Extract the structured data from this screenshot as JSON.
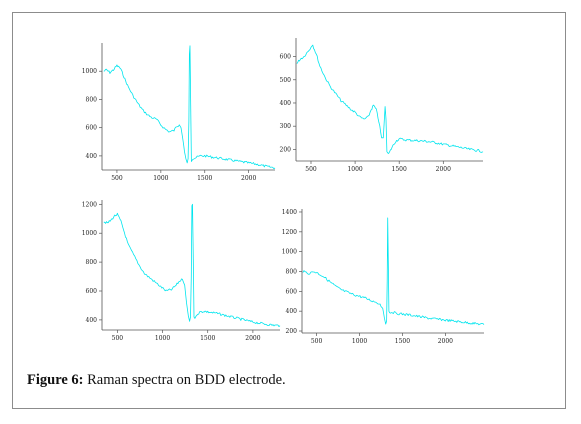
{
  "figure": {
    "caption_label": "Figure 6:",
    "caption_text": " Raman spectra on BDD electrode."
  },
  "colors": {
    "series": "#00e5ee",
    "axis": "#555555",
    "border": "#8c8c8c"
  },
  "chart_data": [
    {
      "type": "line",
      "xlim": [
        330,
        2300
      ],
      "ylim": [
        300,
        1200
      ],
      "xticks": [
        500,
        1000,
        1500,
        2000
      ],
      "yticks": [
        400,
        600,
        800,
        1000
      ],
      "series": [
        {
          "x": [
            350,
            380,
            420,
            460,
            500,
            540,
            580,
            620,
            680,
            740,
            800,
            850,
            900,
            950,
            1000,
            1050,
            1100,
            1150,
            1180,
            1210,
            1230,
            1250,
            1270,
            1285,
            1300,
            1310,
            1320,
            1325,
            1332,
            1340,
            1348,
            1360,
            1390,
            1450,
            1500,
            1600,
            1700,
            1800,
            1900,
            2000,
            2100,
            2200,
            2300
          ],
          "y": [
            1000,
            1010,
            990,
            1010,
            1040,
            1020,
            960,
            900,
            830,
            770,
            720,
            690,
            670,
            660,
            620,
            590,
            570,
            580,
            610,
            620,
            600,
            520,
            430,
            380,
            350,
            380,
            650,
            1120,
            1180,
            760,
            360,
            380,
            385,
            400,
            400,
            390,
            380,
            370,
            360,
            350,
            340,
            325,
            315
          ]
        }
      ]
    },
    {
      "type": "line",
      "xlim": [
        330,
        2450
      ],
      "ylim": [
        150,
        680
      ],
      "xticks": [
        500,
        1000,
        1500,
        2000
      ],
      "yticks": [
        200,
        300,
        400,
        500,
        600
      ],
      "series": [
        {
          "x": [
            340,
            380,
            420,
            460,
            500,
            520,
            560,
            600,
            660,
            720,
            780,
            840,
            900,
            960,
            1000,
            1050,
            1100,
            1150,
            1180,
            1210,
            1240,
            1270,
            1300,
            1320,
            1340,
            1350,
            1360,
            1380,
            1420,
            1460,
            1500,
            1550,
            1600,
            1700,
            1800,
            1900,
            2000,
            2100,
            2200,
            2300,
            2400,
            2450
          ],
          "y": [
            570,
            590,
            600,
            620,
            640,
            650,
            610,
            560,
            510,
            470,
            440,
            410,
            390,
            370,
            360,
            340,
            330,
            340,
            370,
            390,
            370,
            320,
            250,
            250,
            385,
            330,
            190,
            180,
            210,
            235,
            245,
            242,
            240,
            238,
            235,
            230,
            222,
            215,
            208,
            200,
            195,
            190
          ]
        }
      ]
    },
    {
      "type": "line",
      "xlim": [
        330,
        2300
      ],
      "ylim": [
        330,
        1230
      ],
      "xticks": [
        500,
        1000,
        1500,
        2000
      ],
      "yticks": [
        400,
        600,
        800,
        1000,
        1200
      ],
      "series": [
        {
          "x": [
            350,
            390,
            430,
            470,
            500,
            540,
            580,
            620,
            680,
            740,
            800,
            860,
            920,
            980,
            1040,
            1100,
            1150,
            1190,
            1220,
            1245,
            1265,
            1285,
            1300,
            1310,
            1318,
            1325,
            1332,
            1340,
            1348,
            1358,
            1380,
            1420,
            1460,
            1500,
            1600,
            1700,
            1800,
            1900,
            2000,
            2100,
            2200,
            2300
          ],
          "y": [
            1080,
            1070,
            1090,
            1120,
            1130,
            1080,
            1000,
            920,
            850,
            780,
            720,
            690,
            660,
            630,
            600,
            610,
            640,
            670,
            680,
            640,
            520,
            430,
            390,
            420,
            700,
            1190,
            1200,
            820,
            420,
            410,
            440,
            455,
            460,
            455,
            445,
            430,
            415,
            400,
            385,
            375,
            365,
            360
          ]
        }
      ]
    },
    {
      "type": "line",
      "xlim": [
        330,
        2450
      ],
      "ylim": [
        180,
        1430
      ],
      "xticks": [
        500,
        1000,
        1500,
        2000
      ],
      "yticks": [
        200,
        400,
        600,
        800,
        1000,
        1200,
        1400
      ],
      "series": [
        {
          "x": [
            340,
            380,
            420,
            460,
            500,
            540,
            580,
            620,
            680,
            740,
            800,
            860,
            920,
            980,
            1040,
            1100,
            1160,
            1200,
            1240,
            1270,
            1290,
            1305,
            1315,
            1322,
            1328,
            1335,
            1342,
            1350,
            1360,
            1380,
            1420,
            1460,
            1500,
            1600,
            1700,
            1800,
            1900,
            2000,
            2100,
            2200,
            2300,
            2400,
            2450
          ],
          "y": [
            800,
            790,
            780,
            800,
            790,
            770,
            750,
            720,
            680,
            640,
            610,
            590,
            570,
            555,
            540,
            520,
            500,
            490,
            470,
            430,
            330,
            270,
            300,
            700,
            1340,
            900,
            400,
            385,
            380,
            390,
            380,
            375,
            370,
            360,
            345,
            330,
            320,
            310,
            300,
            290,
            280,
            270,
            265
          ]
        }
      ]
    }
  ]
}
